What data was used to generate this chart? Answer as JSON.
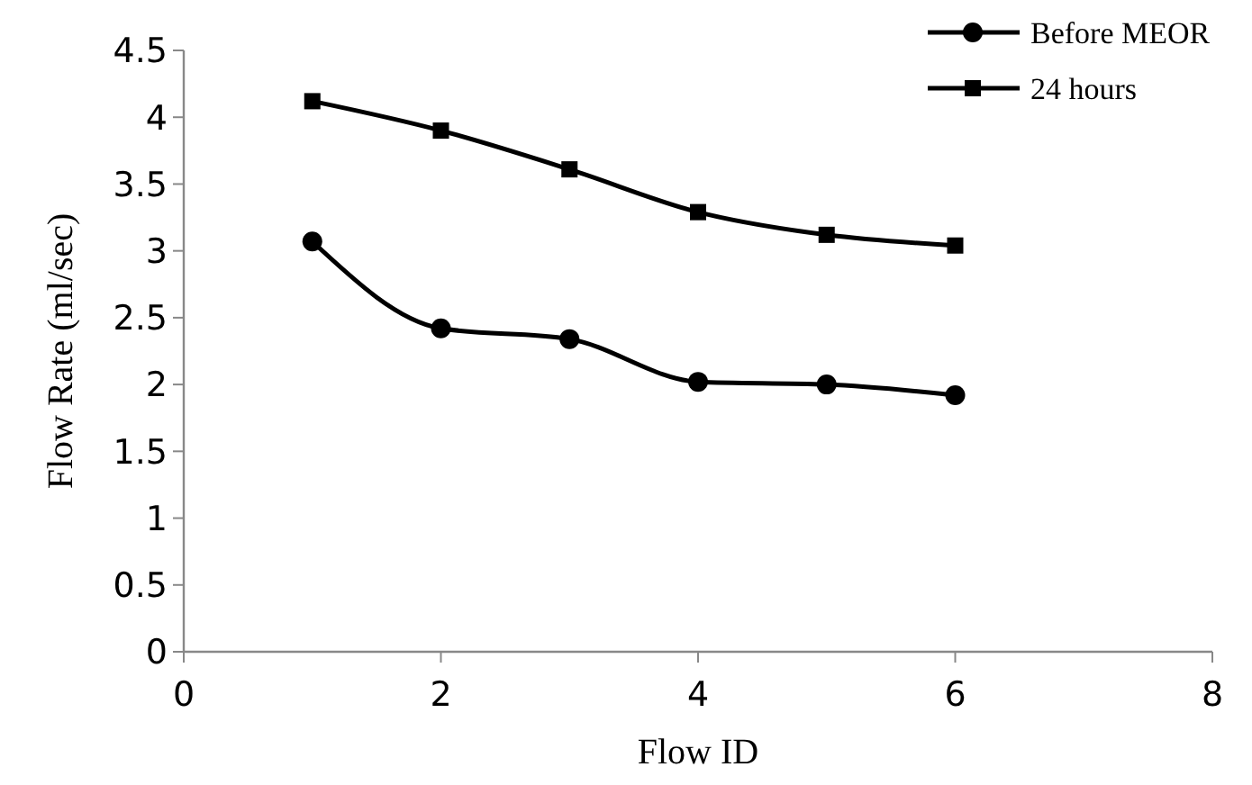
{
  "chart_data": {
    "type": "line",
    "xlabel": "Flow ID",
    "ylabel": "Flow Rate (ml/sec)",
    "x": [
      1,
      2,
      3,
      4,
      5,
      6
    ],
    "series": [
      {
        "name": "Before MEOR",
        "color": "#000000",
        "marker": "circle",
        "values": [
          3.07,
          2.42,
          2.34,
          2.02,
          2.0,
          1.92
        ]
      },
      {
        "name": "24 hours",
        "color": "#000000",
        "marker": "square",
        "values": [
          4.12,
          3.9,
          3.61,
          3.29,
          3.12,
          3.04
        ]
      }
    ],
    "xlim": [
      0,
      8
    ],
    "xticks": [
      0,
      2,
      4,
      6,
      8
    ],
    "ylim": [
      0,
      4.5
    ],
    "yticks": [
      0,
      0.5,
      1,
      1.5,
      2,
      2.5,
      3,
      3.5,
      4,
      4.5
    ],
    "grid": false,
    "legend": "top right",
    "line_style": "solid"
  }
}
